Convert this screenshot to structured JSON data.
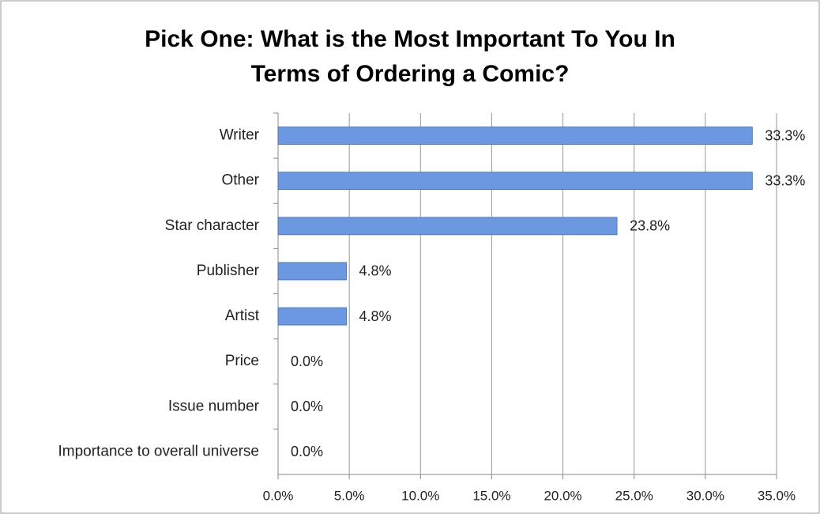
{
  "chart_data": {
    "type": "bar",
    "orientation": "horizontal",
    "title": "Pick One: What is the Most Important To You In Terms of Ordering a Comic?",
    "categories": [
      "Writer",
      "Other",
      "Star character",
      "Publisher",
      "Artist",
      "Price",
      "Issue number",
      "Importance to overall universe"
    ],
    "values": [
      33.3,
      33.3,
      23.8,
      4.8,
      4.8,
      0,
      0,
      0
    ],
    "value_labels": [
      "33.3%",
      "33.3%",
      "23.8%",
      "4.8%",
      "4.8%",
      "0.0%",
      "0.0%",
      "0.0%"
    ],
    "color": "#6b98e0",
    "xlim": [
      0,
      35
    ],
    "xticks": [
      {
        "value": 0,
        "label": "0.0%"
      },
      {
        "value": 5,
        "label": "5.0%"
      },
      {
        "value": 10,
        "label": "10.0%"
      },
      {
        "value": 15,
        "label": "15.0%"
      },
      {
        "value": 20,
        "label": "20.0%"
      },
      {
        "value": 25,
        "label": "25.0%"
      },
      {
        "value": 30,
        "label": "30.0%"
      },
      {
        "value": 35,
        "label": "35.0%"
      }
    ],
    "grid": true
  }
}
